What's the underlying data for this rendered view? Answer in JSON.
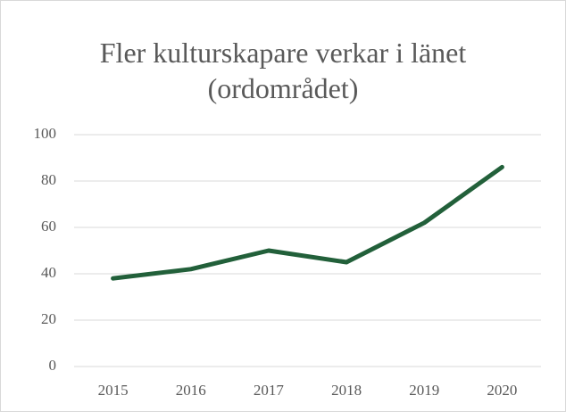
{
  "chart_data": {
    "type": "line",
    "title": "Fler kulturskapare verkar i länet (ordområdet)",
    "categories": [
      "2015",
      "2016",
      "2017",
      "2018",
      "2019",
      "2020"
    ],
    "values": [
      38,
      42,
      50,
      45,
      62,
      86
    ],
    "color": "#22603a",
    "ylim": [
      0,
      100
    ],
    "yticks": [
      0,
      20,
      40,
      60,
      80,
      100
    ],
    "grid": true
  }
}
